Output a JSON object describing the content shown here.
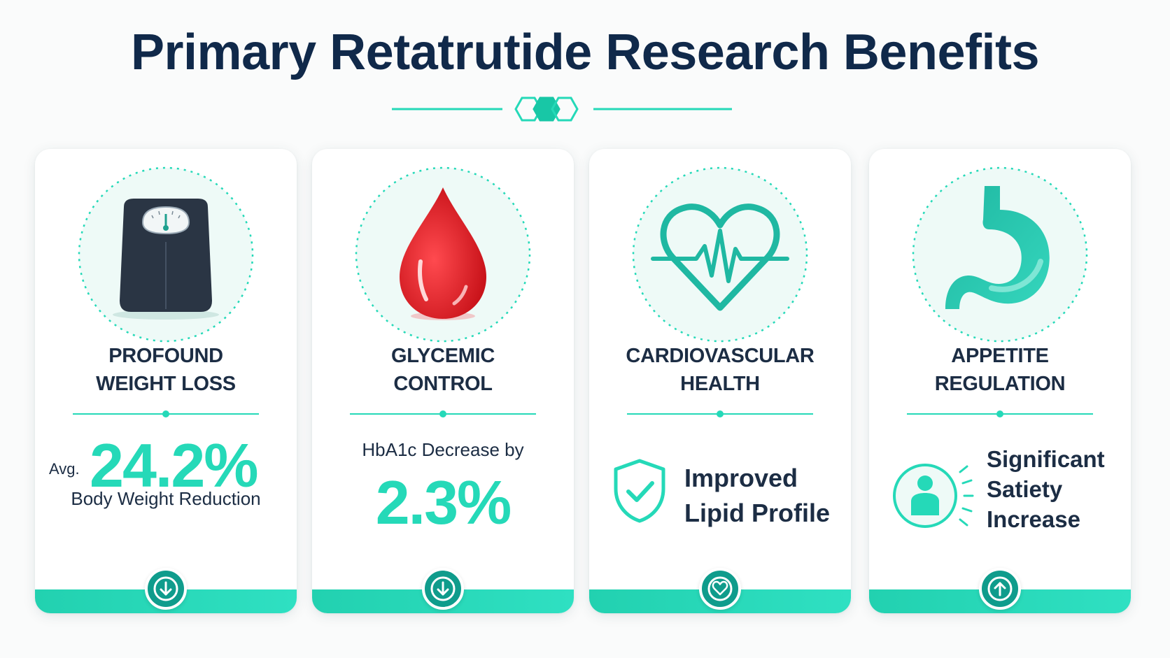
{
  "title": "Primary Retatrutide Research Benefits",
  "colors": {
    "accent": "#25d9b8",
    "dark": "#10294a",
    "teal_dark": "#0f9c8c",
    "red": "#e3242b"
  },
  "cards": [
    {
      "title_lines": [
        "PROFOUND",
        "WEIGHT LOSS"
      ],
      "icon": "scale-icon",
      "prefix": "Avg.",
      "value": "24.2%",
      "caption": "Body Weight Reduction",
      "footer_icon": "arrow-down-icon"
    },
    {
      "title_lines": [
        "GLYCEMIC",
        "CONTROL"
      ],
      "icon": "blood-drop-icon",
      "label": "HbA1c Decrease by",
      "value": "2.3%",
      "footer_icon": "arrow-down-icon"
    },
    {
      "title_lines": [
        "CARDIOVASCULAR",
        "HEALTH"
      ],
      "icon": "heart-pulse-icon",
      "sub_icon": "shield-check-icon",
      "text_lines": [
        "Improved",
        "Lipid Profile"
      ],
      "footer_icon": "heart-icon"
    },
    {
      "title_lines": [
        "APPETITE",
        "REGULATION"
      ],
      "icon": "stomach-icon",
      "sub_icon": "person-satiety-icon",
      "text_lines": [
        "Significant",
        "Satiety",
        "Increase"
      ],
      "footer_icon": "arrow-up-icon"
    }
  ]
}
